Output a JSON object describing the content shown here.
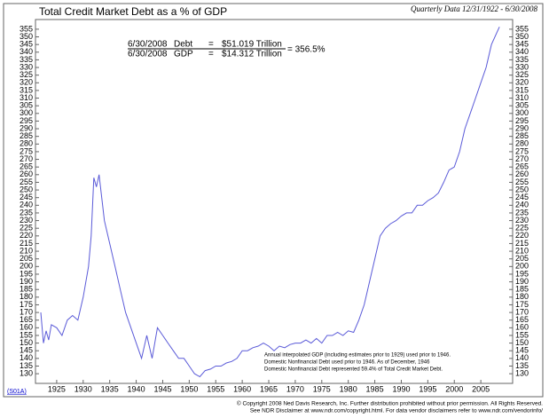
{
  "chart_data": {
    "type": "line",
    "title": "Total Credit Market Debt as a % of GDP",
    "subtitle": "Quarterly Data 12/31/1922 - 6/30/2008",
    "annotation": {
      "rows": [
        {
          "date": "6/30/2008",
          "label": "Debt",
          "eq": "=",
          "amount": "$51.019 Trillion"
        },
        {
          "date": "6/30/2008",
          "label": "GDP",
          "eq": "=",
          "amount": "$14.312 Trillion"
        }
      ],
      "ratio": "=  356.5%"
    },
    "notes": [
      "Annual interpolated GDP (including estimates prior to 1929) used prior to 1946.",
      "Domestic Nonfinancial Debt used prior to 1946. As of December, 1946",
      "Domestic Nonfinancial Debt represented 59.4% of Total Credit Market Debt."
    ],
    "footer": [
      "© Copyright 2008 Ned Davis Research, Inc.  Further distribution prohibited without prior permission.  All Rights Reserved.",
      "See NDR Disclaimer at www.ndr.com/copyright.html.  For data vendor disclaimers refer to www.ndr.com/vendorinfo/"
    ],
    "code": "(S01A)",
    "series": [
      {
        "name": "Total Credit Market Debt as a % of GDP",
        "color": "#5a5ad8",
        "x": [
          1922,
          1922.5,
          1923,
          1923.5,
          1924,
          1925,
          1926,
          1927,
          1928,
          1929,
          1930,
          1931,
          1931.5,
          1932,
          1932.5,
          1933,
          1933.5,
          1934,
          1935,
          1936,
          1937,
          1938,
          1939,
          1940,
          1941,
          1942,
          1943,
          1944,
          1945,
          1946,
          1947,
          1948,
          1949,
          1950,
          1951,
          1952,
          1953,
          1954,
          1955,
          1956,
          1957,
          1958,
          1959,
          1960,
          1961,
          1962,
          1963,
          1964,
          1965,
          1966,
          1967,
          1968,
          1969,
          1970,
          1971,
          1972,
          1973,
          1974,
          1975,
          1976,
          1977,
          1978,
          1979,
          1980,
          1981,
          1982,
          1983,
          1984,
          1985,
          1986,
          1987,
          1988,
          1989,
          1990,
          1991,
          1992,
          1993,
          1994,
          1995,
          1996,
          1997,
          1998,
          1999,
          2000,
          2001,
          2002,
          2003,
          2004,
          2005,
          2006,
          2007,
          2008.5
        ],
        "values": [
          170,
          150,
          158,
          152,
          162,
          160,
          155,
          165,
          168,
          165,
          180,
          200,
          220,
          258,
          252,
          260,
          245,
          230,
          215,
          200,
          185,
          170,
          160,
          150,
          140,
          155,
          140,
          160,
          155,
          150,
          145,
          140,
          140,
          135,
          130,
          128,
          132,
          133,
          135,
          135,
          137,
          138,
          140,
          145,
          145,
          147,
          148,
          150,
          148,
          145,
          148,
          147,
          149,
          150,
          150,
          152,
          150,
          153,
          150,
          155,
          155,
          157,
          155,
          158,
          157,
          165,
          175,
          190,
          205,
          220,
          225,
          228,
          230,
          233,
          235,
          235,
          240,
          240,
          243,
          245,
          248,
          255,
          263,
          265,
          275,
          290,
          300,
          310,
          320,
          330,
          345,
          356.5
        ]
      }
    ],
    "xlim": [
      1921,
      2011
    ],
    "xticks": [
      1925,
      1930,
      1935,
      1940,
      1945,
      1950,
      1955,
      1960,
      1965,
      1970,
      1975,
      1980,
      1985,
      1990,
      1995,
      2000,
      2005
    ],
    "ylim": [
      126,
      359
    ],
    "yticks": [
      130,
      135,
      140,
      145,
      150,
      155,
      160,
      165,
      170,
      175,
      180,
      185,
      190,
      195,
      200,
      205,
      210,
      215,
      220,
      225,
      230,
      235,
      240,
      245,
      250,
      255,
      260,
      265,
      270,
      275,
      280,
      285,
      290,
      295,
      300,
      305,
      310,
      315,
      320,
      325,
      330,
      335,
      340,
      345,
      350,
      355
    ]
  }
}
